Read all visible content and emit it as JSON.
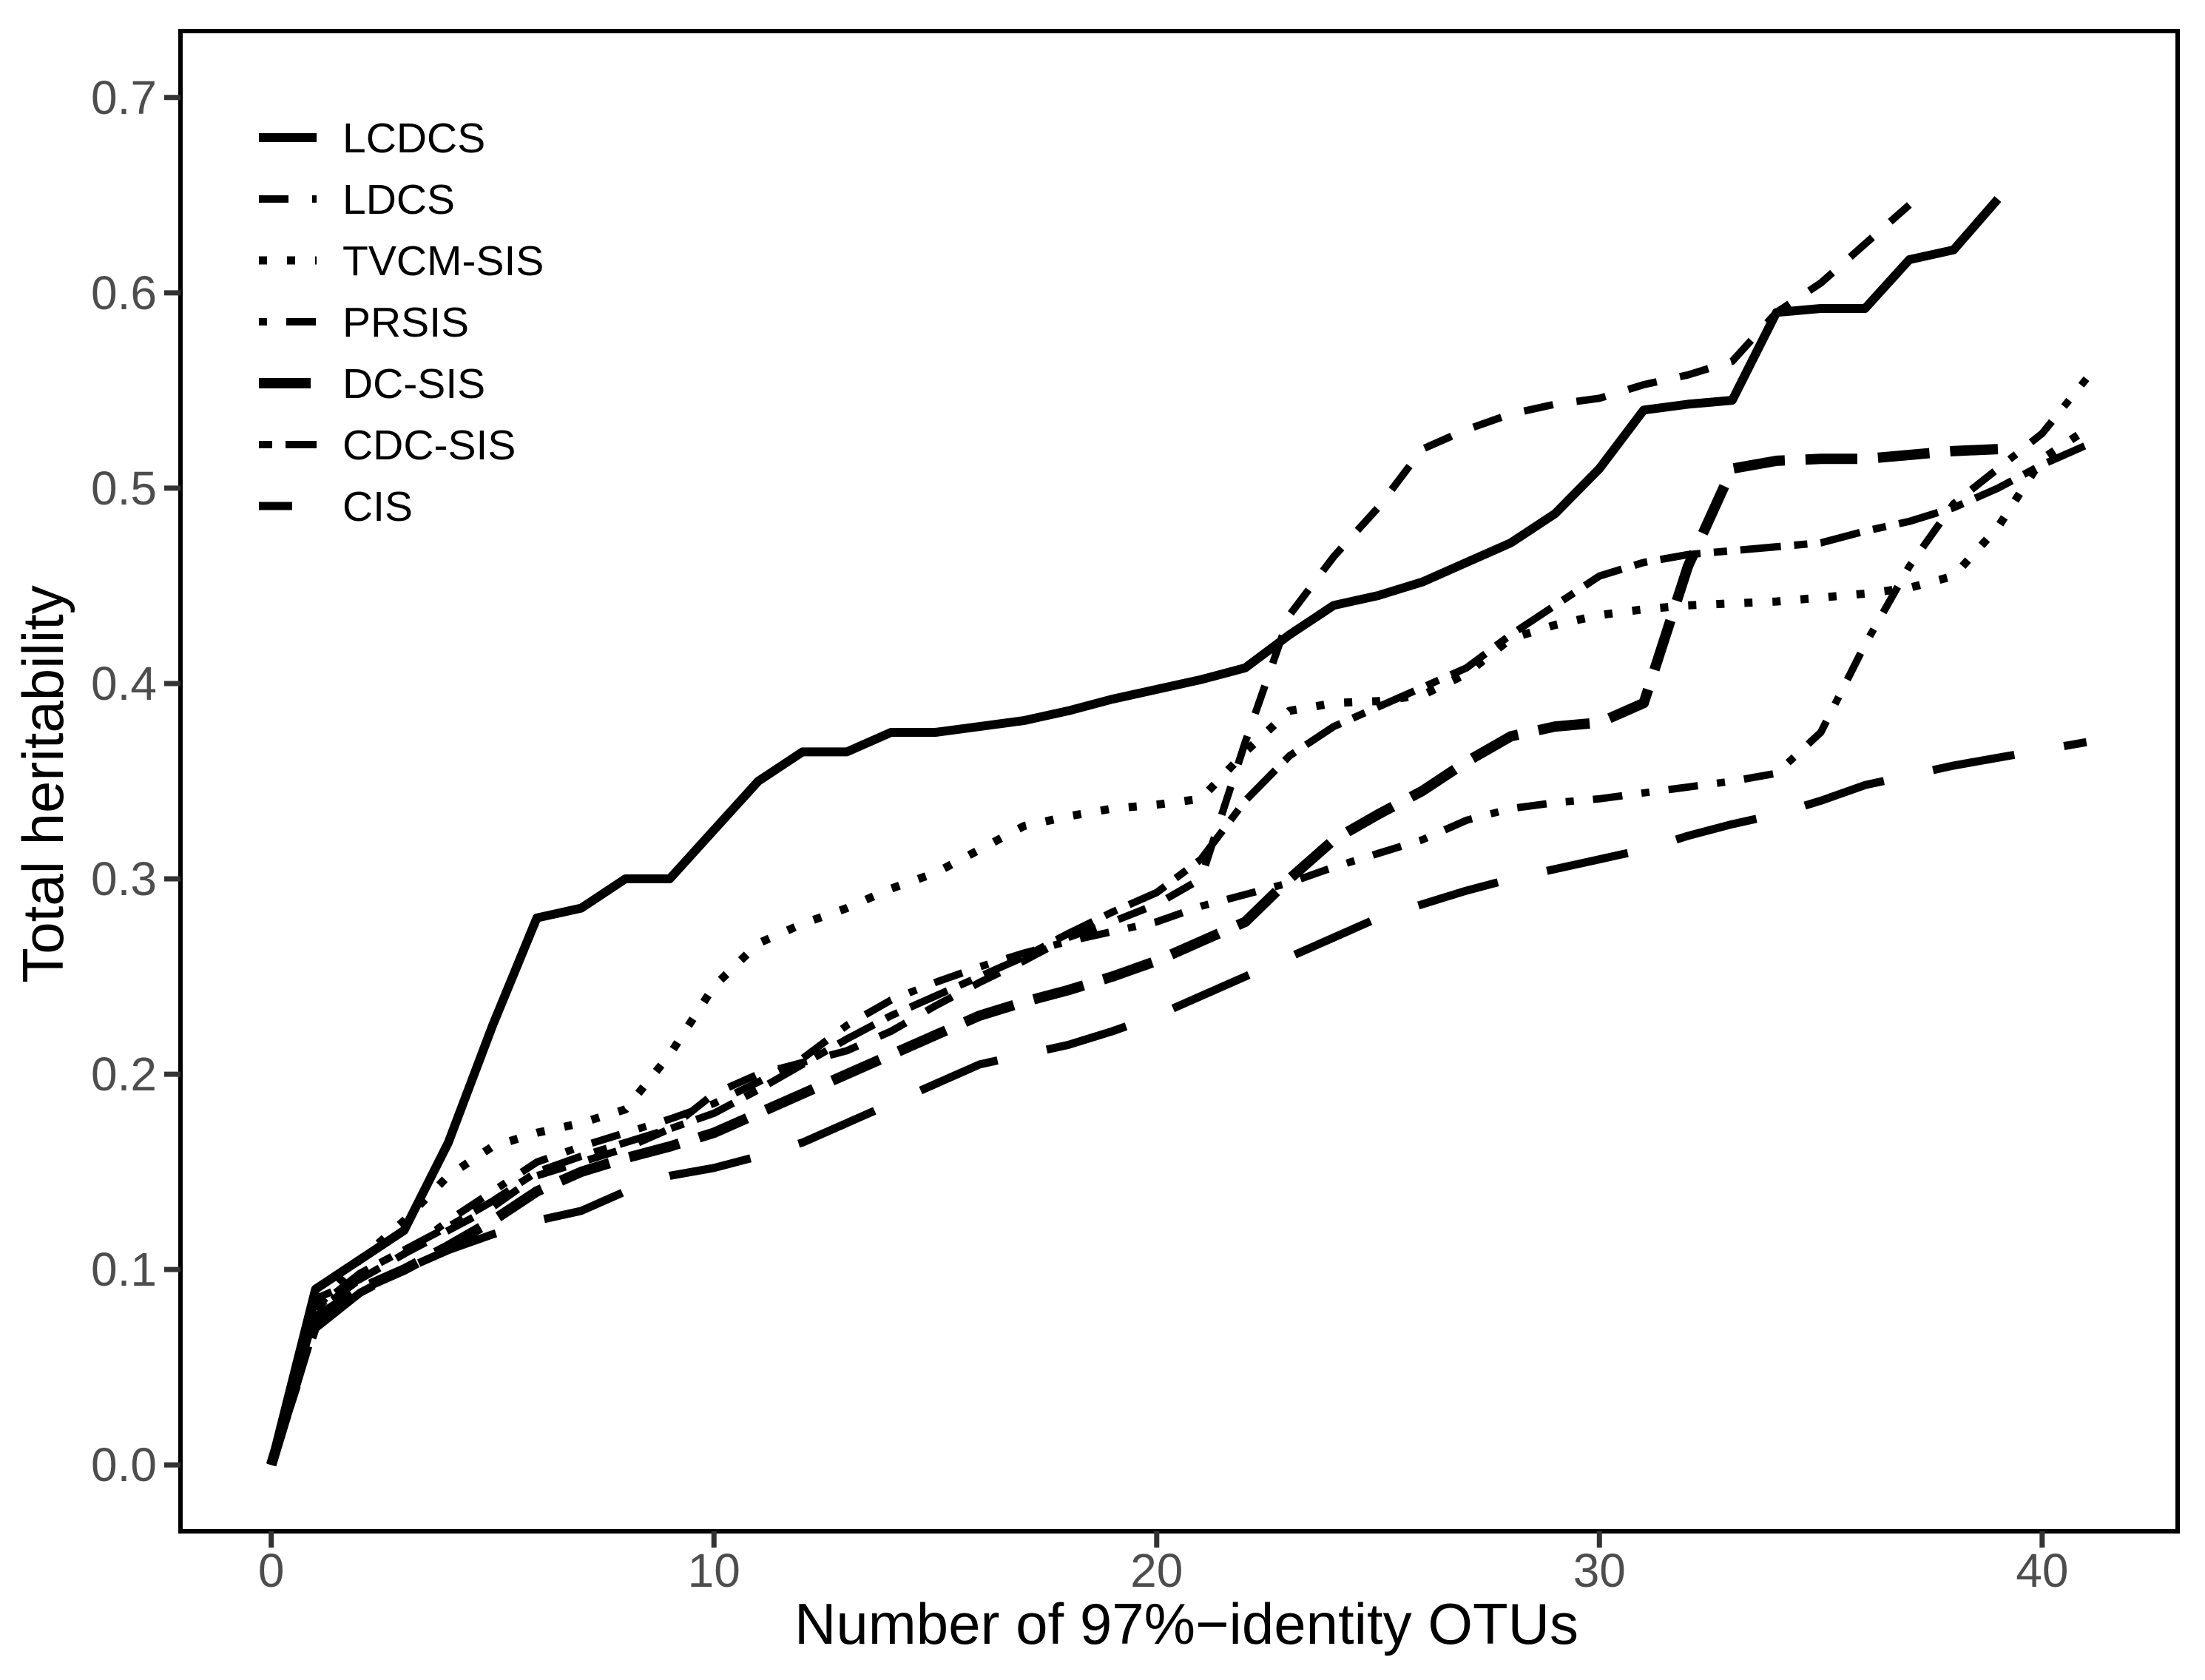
{
  "chart_data": {
    "type": "line",
    "title": "",
    "xlabel": "Number of 97%−identity OTUs",
    "ylabel": "Total heritability",
    "xlim": [
      -2.05,
      43.06
    ],
    "ylim": [
      -0.034,
      0.734
    ],
    "xticks": [
      0,
      10,
      20,
      30,
      40
    ],
    "x_tick_labels": [
      "0",
      "10",
      "20",
      "30",
      "40"
    ],
    "yticks": [
      0.0,
      0.1,
      0.2,
      0.3,
      0.4,
      0.5,
      0.6,
      0.7
    ],
    "y_tick_labels": [
      "0.0",
      "0.1",
      "0.2",
      "0.3",
      "0.4",
      "0.5",
      "0.6",
      "0.7"
    ],
    "grid": "off",
    "legend_position": "inside-top-left",
    "colors": {
      "line": "#000000",
      "tick_label": "#4d4d4d",
      "tick_mark": "#333333",
      "panel_border": "#000000",
      "background": "#ffffff"
    },
    "series": [
      {
        "name": "LCDCS",
        "linetype": "solid",
        "width": 12,
        "dash": "",
        "x": [
          0,
          1,
          2,
          3,
          4,
          5,
          6,
          7,
          8,
          9,
          10,
          11,
          12,
          13,
          14,
          15,
          16,
          17,
          18,
          19,
          20,
          21,
          22,
          23,
          24,
          25,
          26,
          27,
          28,
          29,
          30,
          31,
          32,
          33,
          34,
          35,
          36,
          37,
          38,
          39
        ],
        "y": [
          0.0,
          0.09,
          0.105,
          0.12,
          0.165,
          0.225,
          0.28,
          0.285,
          0.3,
          0.3,
          0.325,
          0.35,
          0.365,
          0.365,
          0.375,
          0.375,
          0.378,
          0.381,
          0.386,
          0.392,
          0.397,
          0.402,
          0.408,
          0.425,
          0.44,
          0.445,
          0.452,
          0.462,
          0.472,
          0.487,
          0.51,
          0.54,
          0.543,
          0.545,
          0.59,
          0.592,
          0.592,
          0.617,
          0.622,
          0.648
        ]
      },
      {
        "name": "LDCS",
        "linetype": "dashed",
        "width": 10,
        "dash": "40 32",
        "x": [
          0,
          1,
          2,
          3,
          4,
          5,
          6,
          7,
          8,
          9,
          10,
          11,
          12,
          13,
          14,
          15,
          16,
          17,
          18,
          19,
          20,
          21,
          22,
          23,
          24,
          25,
          26,
          27,
          28,
          29,
          30,
          31,
          32,
          33,
          34,
          35,
          36,
          37
        ],
        "y": [
          0.0,
          0.085,
          0.095,
          0.108,
          0.12,
          0.132,
          0.148,
          0.155,
          0.162,
          0.172,
          0.19,
          0.2,
          0.206,
          0.212,
          0.222,
          0.235,
          0.247,
          0.258,
          0.27,
          0.278,
          0.287,
          0.3,
          0.37,
          0.435,
          0.465,
          0.49,
          0.52,
          0.53,
          0.538,
          0.543,
          0.546,
          0.553,
          0.558,
          0.565,
          0.59,
          0.605,
          0.625,
          0.645
        ]
      },
      {
        "name": "TVCM-SIS",
        "linetype": "dotted",
        "width": 11,
        "dash": "11 27",
        "x": [
          0,
          1,
          2,
          3,
          4,
          5,
          6,
          7,
          8,
          9,
          10,
          11,
          12,
          13,
          14,
          15,
          16,
          17,
          18,
          19,
          20,
          21,
          22,
          23,
          24,
          25,
          26,
          27,
          28,
          29,
          30,
          31,
          32,
          33,
          34,
          35,
          36,
          37,
          38,
          39,
          40,
          41
        ],
        "y": [
          0.0,
          0.08,
          0.105,
          0.125,
          0.148,
          0.163,
          0.17,
          0.175,
          0.182,
          0.21,
          0.245,
          0.267,
          0.277,
          0.285,
          0.295,
          0.303,
          0.315,
          0.327,
          0.332,
          0.336,
          0.338,
          0.341,
          0.365,
          0.386,
          0.39,
          0.391,
          0.394,
          0.405,
          0.423,
          0.43,
          0.435,
          0.438,
          0.44,
          0.441,
          0.442,
          0.444,
          0.446,
          0.449,
          0.455,
          0.48,
          0.515,
          0.53
        ]
      },
      {
        "name": "PRSIS",
        "linetype": "dotdash",
        "width": 10,
        "dash": "11 26 40 26",
        "x": [
          0,
          1,
          2,
          3,
          4,
          5,
          6,
          7,
          8,
          9,
          10,
          11,
          12,
          13,
          14,
          15,
          16,
          17,
          18,
          19,
          20,
          21,
          22,
          23,
          24,
          25,
          26,
          27,
          28,
          29,
          30,
          31,
          32,
          33,
          34,
          35,
          36,
          37,
          38,
          39,
          40,
          41
        ],
        "y": [
          0.0,
          0.078,
          0.095,
          0.108,
          0.125,
          0.14,
          0.155,
          0.163,
          0.17,
          0.177,
          0.185,
          0.196,
          0.208,
          0.225,
          0.238,
          0.247,
          0.255,
          0.262,
          0.268,
          0.273,
          0.278,
          0.286,
          0.292,
          0.298,
          0.306,
          0.313,
          0.32,
          0.33,
          0.336,
          0.339,
          0.341,
          0.344,
          0.347,
          0.35,
          0.354,
          0.375,
          0.42,
          0.46,
          0.492,
          0.51,
          0.528,
          0.556
        ]
      },
      {
        "name": "DC-SIS",
        "linetype": "longdash",
        "width": 14,
        "dash": "70 28",
        "x": [
          0,
          1,
          2,
          3,
          4,
          5,
          6,
          7,
          8,
          9,
          10,
          11,
          12,
          13,
          14,
          15,
          16,
          17,
          18,
          19,
          20,
          21,
          22,
          23,
          24,
          25,
          26,
          27,
          28,
          29,
          30,
          31,
          32,
          33,
          34,
          35,
          36,
          37,
          38,
          39
        ],
        "y": [
          0.0,
          0.075,
          0.09,
          0.1,
          0.112,
          0.125,
          0.14,
          0.15,
          0.157,
          0.163,
          0.17,
          0.18,
          0.19,
          0.2,
          0.21,
          0.22,
          0.23,
          0.237,
          0.243,
          0.25,
          0.258,
          0.268,
          0.278,
          0.3,
          0.32,
          0.333,
          0.345,
          0.36,
          0.373,
          0.378,
          0.38,
          0.39,
          0.46,
          0.51,
          0.514,
          0.515,
          0.515,
          0.517,
          0.519,
          0.52
        ]
      },
      {
        "name": "CDC-SIS",
        "linetype": "twodash",
        "width": 10,
        "dash": "18 18 55 18",
        "x": [
          0,
          1,
          2,
          3,
          4,
          5,
          6,
          7,
          8,
          9,
          10,
          11,
          12,
          13,
          14,
          15,
          16,
          17,
          18,
          19,
          20,
          21,
          22,
          23,
          24,
          25,
          26,
          27,
          28,
          29,
          30,
          31,
          32,
          33,
          34,
          35,
          36,
          37,
          38,
          39,
          40,
          41
        ],
        "y": [
          0.0,
          0.08,
          0.098,
          0.11,
          0.122,
          0.135,
          0.15,
          0.158,
          0.165,
          0.172,
          0.18,
          0.192,
          0.205,
          0.218,
          0.23,
          0.24,
          0.25,
          0.26,
          0.272,
          0.283,
          0.293,
          0.31,
          0.34,
          0.363,
          0.378,
          0.388,
          0.398,
          0.408,
          0.425,
          0.44,
          0.455,
          0.462,
          0.466,
          0.468,
          0.47,
          0.472,
          0.478,
          0.483,
          0.49,
          0.5,
          0.512,
          0.522
        ]
      },
      {
        "name": "CIS",
        "linetype": "verylongdash",
        "width": 11,
        "dash": "112 68",
        "key_dash": "45 40",
        "x": [
          0,
          1,
          2,
          3,
          4,
          5,
          6,
          7,
          8,
          9,
          10,
          11,
          12,
          13,
          14,
          15,
          16,
          17,
          18,
          19,
          20,
          21,
          22,
          23,
          24,
          25,
          26,
          27,
          28,
          29,
          30,
          31,
          32,
          33,
          34,
          35,
          36,
          37,
          38,
          39,
          40,
          41
        ],
        "y": [
          0.0,
          0.07,
          0.088,
          0.1,
          0.11,
          0.118,
          0.125,
          0.13,
          0.14,
          0.148,
          0.152,
          0.158,
          0.165,
          0.175,
          0.185,
          0.195,
          0.205,
          0.21,
          0.215,
          0.222,
          0.23,
          0.24,
          0.25,
          0.26,
          0.27,
          0.28,
          0.287,
          0.294,
          0.3,
          0.305,
          0.31,
          0.315,
          0.322,
          0.328,
          0.333,
          0.34,
          0.348,
          0.353,
          0.358,
          0.362,
          0.366,
          0.37
        ]
      }
    ],
    "legend_entries": [
      "LCDCS",
      "LDCS",
      "TVCM-SIS",
      "PRSIS",
      "DC-SIS",
      "CDC-SIS",
      "CIS"
    ]
  }
}
